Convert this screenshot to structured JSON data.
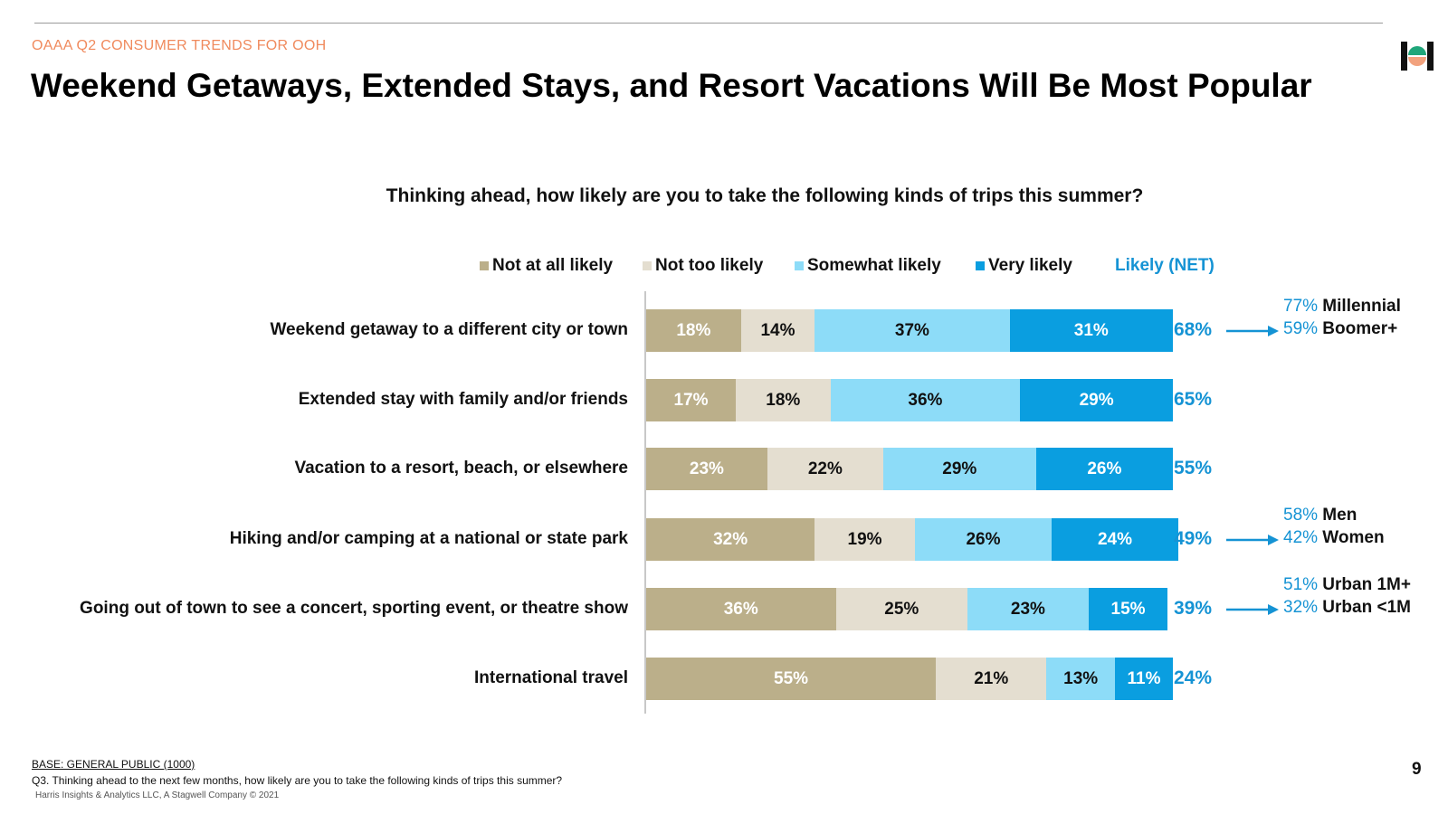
{
  "header": {
    "eyebrow": "OAAA Q2 CONSUMER TRENDS FOR OOH",
    "title": "Weekend Getaways, Extended Stays, and Resort Vacations Will Be Most Popular",
    "logo_icon": "harris-logo-icon"
  },
  "colors": {
    "not_at_all": "#bbaf8a",
    "not_too": "#e4ded0",
    "somewhat": "#8ddcf8",
    "very": "#0a9ee0",
    "net": "#1593d4",
    "eyebrow": "#f08a5d"
  },
  "chart_data": {
    "type": "bar",
    "orientation": "horizontal",
    "stacked": true,
    "question": "Thinking ahead, how likely are you to take the following kinds of trips this summer?",
    "categories": [
      "Weekend getaway to a different city or town",
      "Extended stay with family and/or friends",
      "Vacation to a resort, beach, or elsewhere",
      "Hiking and/or camping at a national or state park",
      "Going out of town to see a concert, sporting event, or theatre show",
      "International travel"
    ],
    "series": [
      {
        "name": "Not at all likely",
        "values": [
          18,
          17,
          23,
          32,
          36,
          55
        ]
      },
      {
        "name": "Not too likely",
        "values": [
          14,
          18,
          22,
          19,
          25,
          21
        ]
      },
      {
        "name": "Somewhat likely",
        "values": [
          37,
          36,
          29,
          26,
          23,
          13
        ]
      },
      {
        "name": "Very likely",
        "values": [
          31,
          29,
          26,
          24,
          15,
          11
        ]
      }
    ],
    "net_label": "Likely (NET)",
    "net_values": [
      "68%",
      "65%",
      "55%",
      "49%",
      "39%",
      "24%"
    ],
    "callouts": [
      {
        "row": 0,
        "lines": [
          {
            "pct": "77%",
            "label": "Millennial"
          },
          {
            "pct": "59%",
            "label": "Boomer+"
          }
        ]
      },
      {
        "row": 3,
        "lines": [
          {
            "pct": "58%",
            "label": "Men"
          },
          {
            "pct": "42%",
            "label": "Women"
          }
        ]
      },
      {
        "row": 4,
        "lines": [
          {
            "pct": "51%",
            "label": "Urban 1M+"
          },
          {
            "pct": "32%",
            "label": "Urban <1M"
          }
        ]
      }
    ],
    "legend_position": "top"
  },
  "footer": {
    "base": "BASE: GENERAL PUBLIC (1000)",
    "question_note": "Q3. Thinking ahead to the next few months, how likely are you to take the following kinds of trips this summer?",
    "copyright": "Harris Insights & Analytics LLC, A Stagwell Company © 2021",
    "page_number": "9"
  }
}
